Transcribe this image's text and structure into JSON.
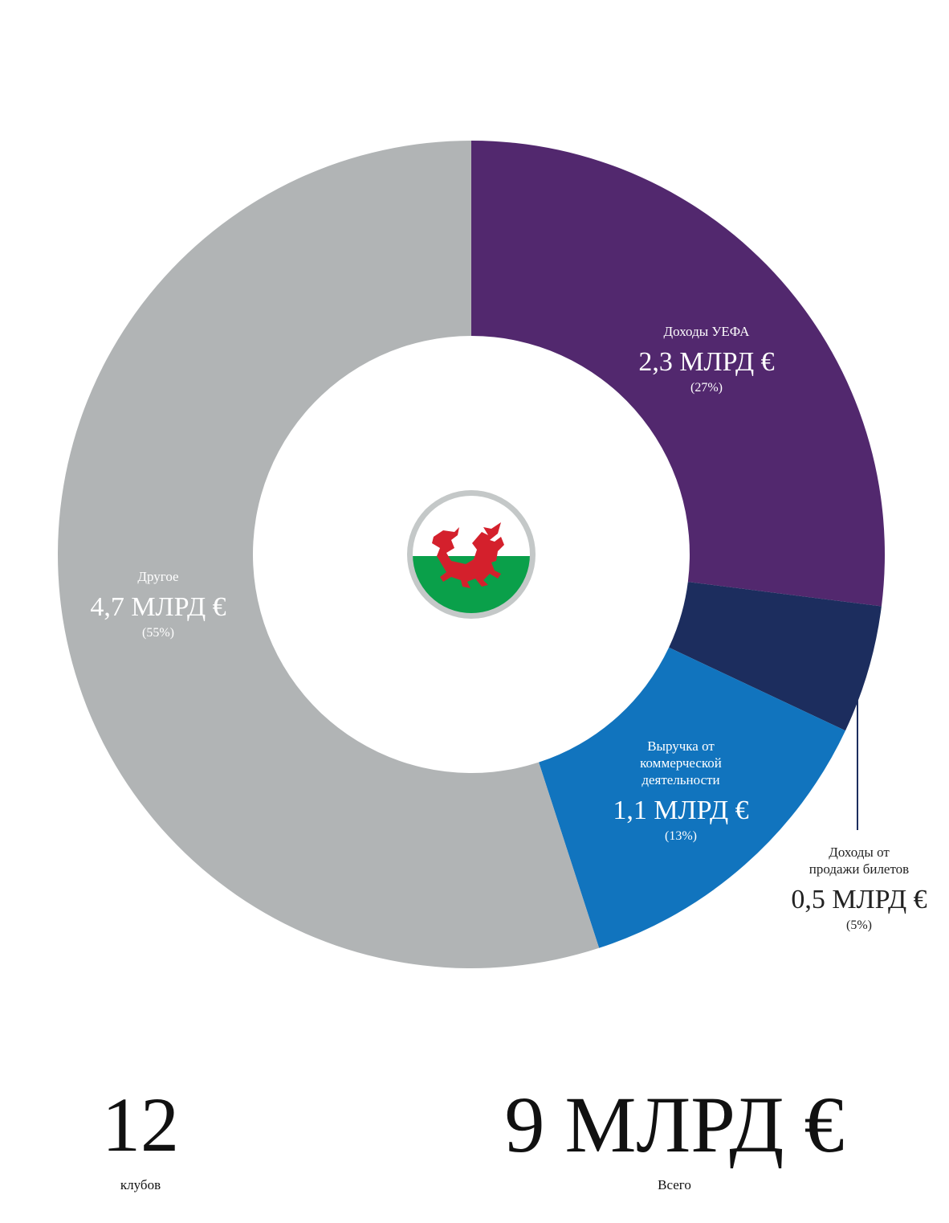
{
  "chart_data": {
    "type": "pie",
    "donut": true,
    "categories": [
      "Доходы УЕФА",
      "Доходы от продажи билетов",
      "Выручка от коммерческой деятельности",
      "Другое"
    ],
    "values": [
      27,
      5,
      13,
      55
    ],
    "value_labels": [
      "(27%)",
      "(5%)",
      "(13%)",
      "(55%)"
    ],
    "amount_labels": [
      "2,3 МЛРД €",
      "0,5 МЛРД €",
      "1,1 МЛРД €",
      "4,7 МЛРД €"
    ],
    "colors": [
      "#52286e",
      "#1c2d5e",
      "#1174be",
      "#b1b4b5"
    ]
  },
  "summary": {
    "clubs": 12,
    "clubs_label": "клубов",
    "total": "9 МЛРД €",
    "total_label": "Всего"
  }
}
